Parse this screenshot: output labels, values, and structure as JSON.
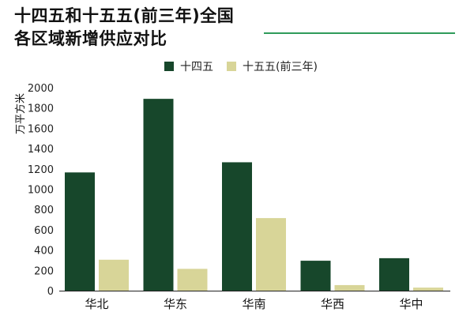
{
  "header": {
    "title_line1": "十四五和十五五(前三年)全国",
    "title_line2": "各区域新增供应对比"
  },
  "colors": {
    "series1": "#17472b",
    "series2": "#d8d598",
    "rule": "#2f9b5a",
    "axis": "#222222"
  },
  "chart_data": {
    "type": "bar",
    "title": "十四五和十五五(前三年)全国各区域新增供应对比",
    "xlabel": "",
    "ylabel": "万平方米",
    "categories": [
      "华北",
      "华东",
      "华南",
      "华西",
      "华中"
    ],
    "series": [
      {
        "name": "十四五",
        "values": [
          1165,
          1890,
          1265,
          295,
          320
        ]
      },
      {
        "name": "十五五(前三年)",
        "values": [
          305,
          215,
          715,
          55,
          30
        ]
      }
    ],
    "ylim": [
      0,
      2000
    ],
    "yticks": [
      "0",
      "200",
      "400",
      "600",
      "800",
      "1000",
      "1200",
      "1400",
      "1600",
      "1800",
      "2000"
    ],
    "grid": false,
    "legend": "top-center"
  }
}
